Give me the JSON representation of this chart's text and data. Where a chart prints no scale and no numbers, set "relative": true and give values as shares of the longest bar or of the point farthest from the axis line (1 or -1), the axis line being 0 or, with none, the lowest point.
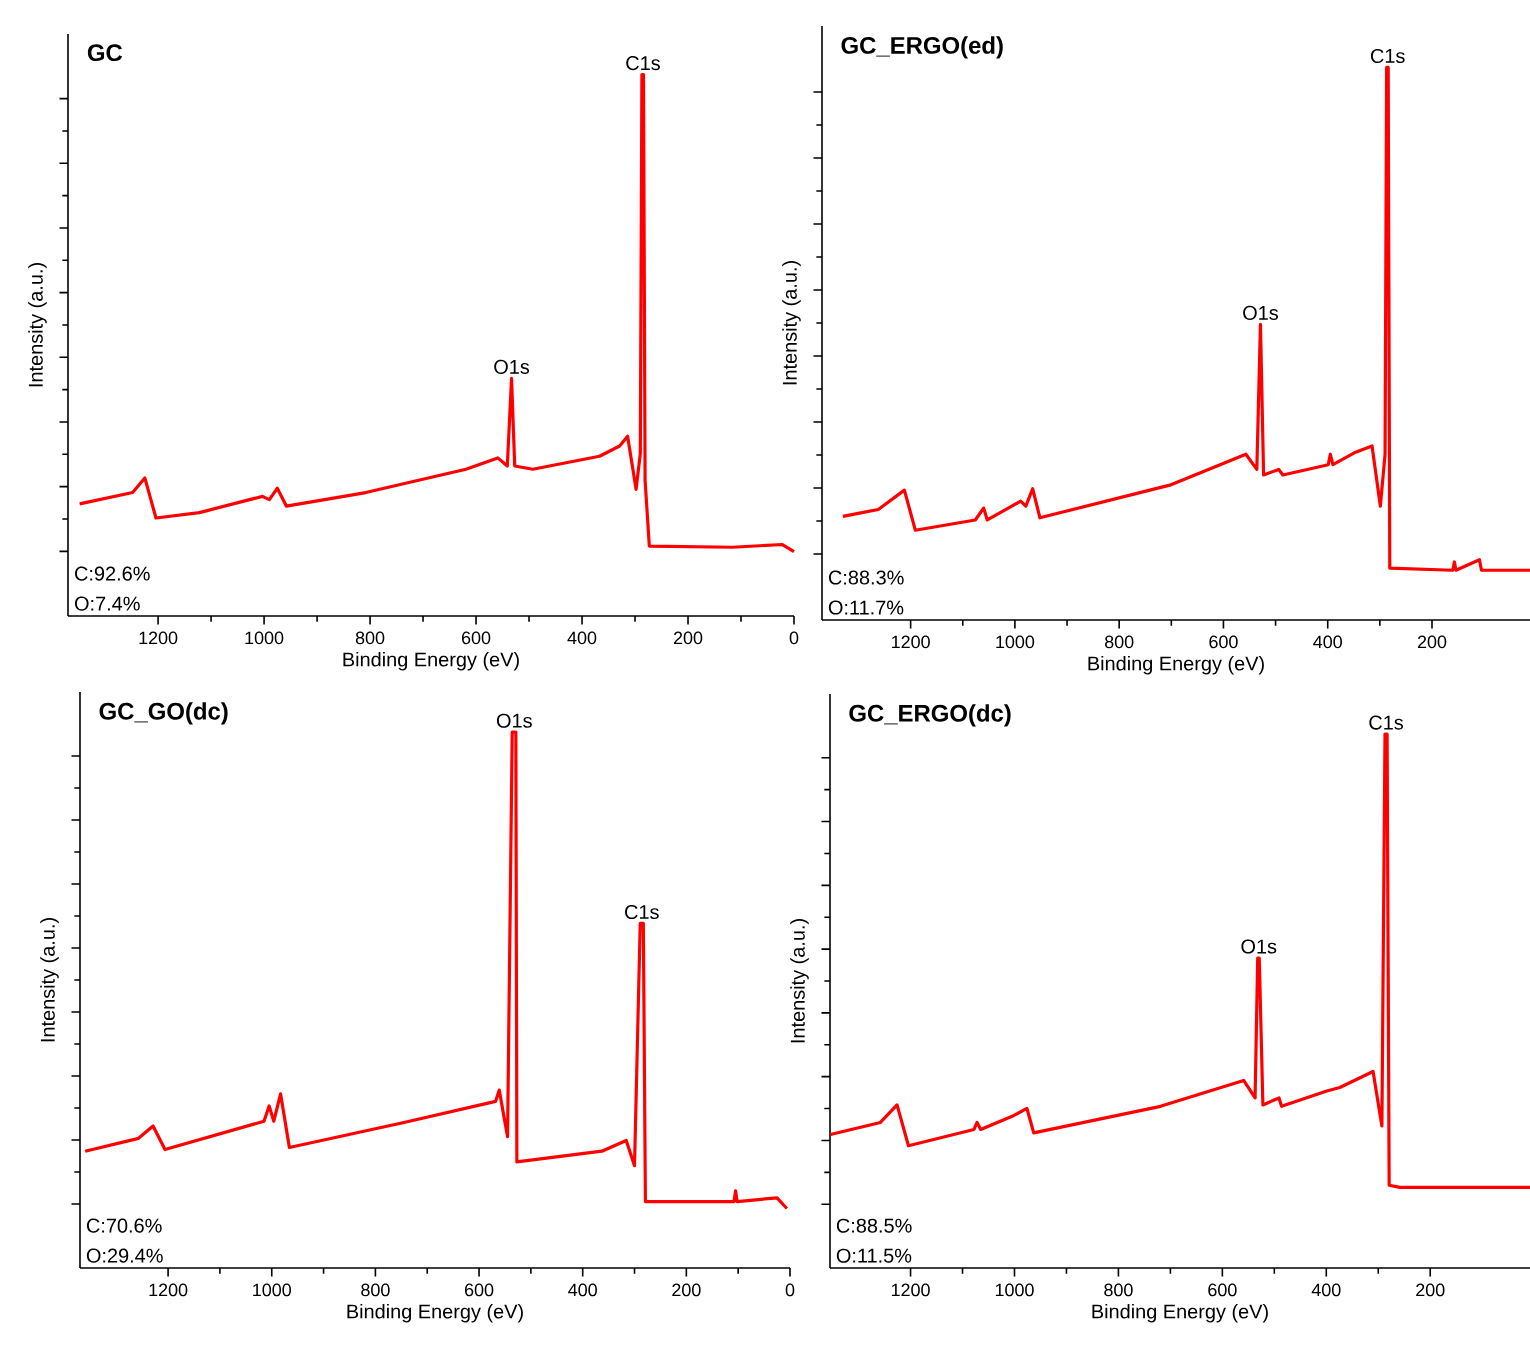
{
  "chart_data": [
    {
      "type": "line",
      "title": "GC",
      "xlabel": "Binding Energy (eV)",
      "ylabel": "Intensity (a.u.)",
      "relative": true,
      "tick_labels": "x",
      "xlim": [
        1370,
        0
      ],
      "xticks": [
        1200,
        1000,
        800,
        600,
        400,
        200,
        0
      ],
      "x": [
        1348,
        1248,
        1225,
        1204,
        1122,
        1003,
        990,
        975,
        958,
        808,
        619,
        559,
        541,
        533,
        527,
        493,
        367,
        329,
        314,
        298,
        290,
        287,
        284,
        281,
        273,
        116,
        22,
        0
      ],
      "series": [
        {
          "color": "#ff0000",
          "values": [
            0.207,
            0.228,
            0.255,
            0.181,
            0.191,
            0.221,
            0.215,
            0.236,
            0.203,
            0.228,
            0.271,
            0.292,
            0.277,
            0.439,
            0.277,
            0.271,
            0.295,
            0.314,
            0.332,
            0.234,
            0.3,
            1.0,
            1.0,
            0.25,
            0.129,
            0.127,
            0.132,
            0.119
          ]
        }
      ],
      "annotations": [
        {
          "text": "C1s",
          "x": 285,
          "y": 1.0
        },
        {
          "text": "O1s",
          "x": 533,
          "y": 0.439
        },
        "C:92.6%",
        "O:7.4%"
      ]
    },
    {
      "type": "line",
      "title": "GC_ERGO(ed)",
      "xlabel": "Binding Energy (eV)",
      "ylabel": "Intensity (a.u.)",
      "relative": true,
      "tick_labels": "x",
      "xlim": [
        1370,
        12
      ],
      "xticks": [
        1200,
        1000,
        800,
        600,
        400,
        200
      ],
      "x": [
        1330,
        1262,
        1212,
        1191,
        1076,
        1060,
        1053,
        989,
        979,
        966,
        952,
        703,
        557,
        536,
        529,
        523,
        494,
        486,
        399,
        395,
        390,
        349,
        315,
        299,
        290,
        287,
        284,
        281,
        160,
        157,
        154,
        109,
        105,
        12
      ],
      "series": [
        {
          "color": "#ff0000",
          "values": [
            0.1875,
            0.2,
            0.235,
            0.1625,
            0.181,
            0.2025,
            0.181,
            0.215,
            0.206,
            0.2375,
            0.185,
            0.244,
            0.3,
            0.2725,
            0.535,
            0.2625,
            0.2725,
            0.2625,
            0.281,
            0.3,
            0.281,
            0.3025,
            0.315,
            0.206,
            0.3,
            1.0,
            1.0,
            0.094,
            0.09,
            0.105,
            0.09,
            0.109,
            0.09,
            0.09
          ]
        }
      ],
      "annotations": [
        {
          "text": "C1s",
          "x": 285,
          "y": 1.0
        },
        {
          "text": "O1s",
          "x": 529,
          "y": 0.535
        },
        "C:88.3%",
        "O:11.7%"
      ]
    },
    {
      "type": "line",
      "title": "GC_GO(dc)",
      "xlabel": "Binding Energy (eV)",
      "ylabel": "Intensity (a.u.)",
      "relative": true,
      "tick_labels": "x",
      "xlim": [
        1370,
        0
      ],
      "xticks": [
        1200,
        1000,
        800,
        600,
        400,
        200,
        0
      ],
      "x": [
        1360,
        1257,
        1229,
        1206,
        1015,
        1005,
        996,
        983,
        966,
        747,
        568,
        561,
        545,
        536,
        529,
        527,
        363,
        316,
        300,
        289,
        283,
        279,
        108,
        105,
        102,
        25,
        6
      ],
      "series": [
        {
          "color": "#ff0000",
          "values": [
            0.218,
            0.242,
            0.265,
            0.221,
            0.274,
            0.3025,
            0.274,
            0.325,
            0.225,
            0.271,
            0.311,
            0.332,
            0.245,
            1.0,
            1.0,
            0.198,
            0.218,
            0.238,
            0.191,
            0.643,
            0.643,
            0.124,
            0.124,
            0.144,
            0.124,
            0.131,
            0.111
          ]
        }
      ],
      "annotations": [
        {
          "text": "O1s",
          "x": 532,
          "y": 1.0
        },
        {
          "text": "C1s",
          "x": 286,
          "y": 0.643
        },
        "C:70.6%",
        "O:29.4%"
      ]
    },
    {
      "type": "line",
      "title": "GC_ERGO(dc)",
      "xlabel": "Binding Energy (eV)",
      "ylabel": "Intensity (a.u.)",
      "relative": true,
      "tick_labels": "x",
      "xlim": [
        1355,
        8
      ],
      "xticks": [
        1200,
        1000,
        800,
        600,
        400,
        200
      ],
      "x": [
        1354,
        1258,
        1226,
        1204,
        1078,
        1072,
        1065,
        1001,
        976,
        963,
        719,
        559,
        537,
        532,
        529,
        522,
        491,
        486,
        399,
        374,
        310,
        293,
        287,
        283,
        279,
        258,
        8
      ],
      "series": [
        {
          "color": "#ff0000",
          "values": [
            0.25,
            0.2726,
            0.3054,
            0.229,
            0.2595,
            0.2726,
            0.2595,
            0.2857,
            0.2988,
            0.253,
            0.3028,
            0.3512,
            0.3185,
            0.5806,
            0.5806,
            0.3054,
            0.3185,
            0.3028,
            0.3316,
            0.338,
            0.368,
            0.266,
            1.0,
            1.0,
            0.155,
            0.151,
            0.151
          ]
        }
      ],
      "annotations": [
        {
          "text": "C1s",
          "x": 285,
          "y": 1.0
        },
        {
          "text": "O1s",
          "x": 530,
          "y": 0.5806
        },
        "C:88.5%",
        "O:11.5%"
      ]
    }
  ]
}
